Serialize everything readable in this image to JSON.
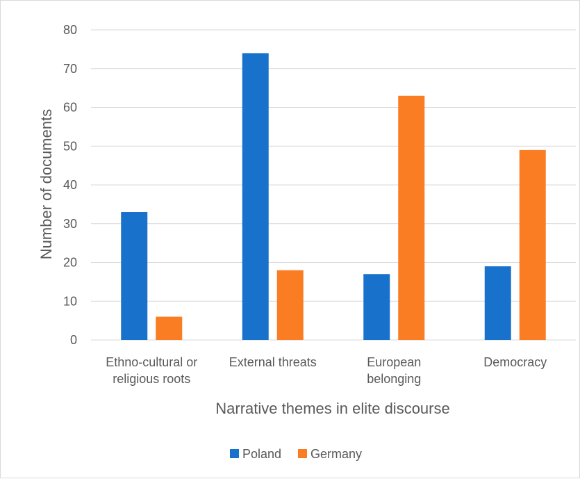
{
  "chart_data": {
    "type": "bar",
    "title": "",
    "xlabel": "Narrative themes in elite discourse",
    "ylabel": "Number of documents",
    "categories": [
      [
        "Ethno-cultural or",
        "religious roots"
      ],
      [
        "External threats"
      ],
      [
        "European",
        "belonging"
      ],
      [
        "Democracy"
      ]
    ],
    "series": [
      {
        "name": "Poland",
        "color": "#1872CC",
        "values": [
          33,
          74,
          17,
          19
        ]
      },
      {
        "name": "Germany",
        "color": "#FA7D23",
        "values": [
          6,
          18,
          63,
          49
        ]
      }
    ],
    "ylim": [
      0,
      80
    ],
    "yticks": [
      0,
      10,
      20,
      30,
      40,
      50,
      60,
      70,
      80
    ],
    "grid": true,
    "gridColor": "#d9d9d9",
    "legend_position": "bottom"
  }
}
